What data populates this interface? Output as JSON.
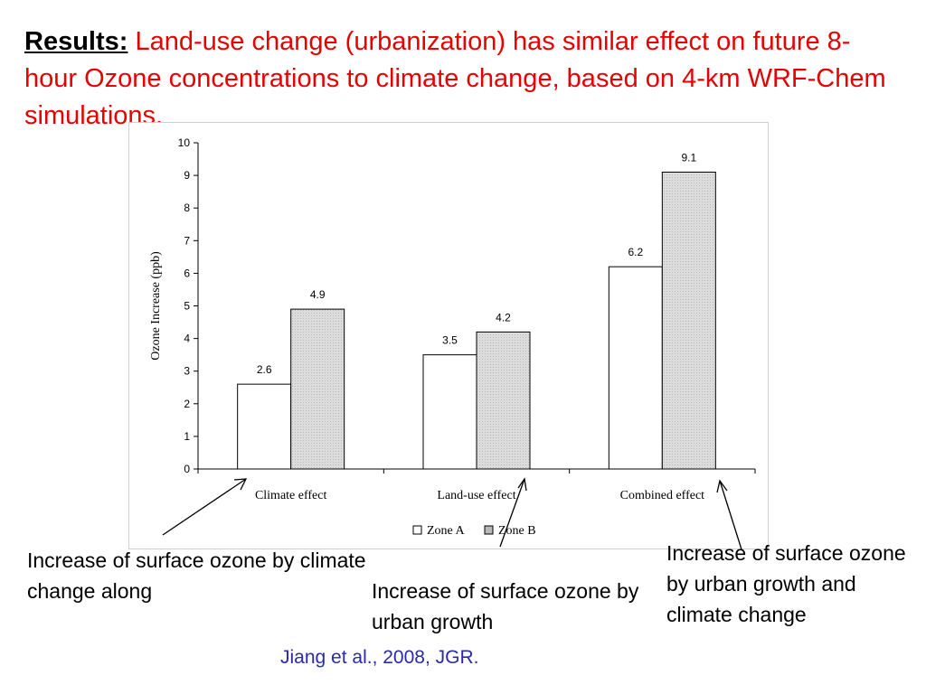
{
  "title": {
    "lead": "Results:",
    "text": "Land-use change (urbanization) has similar effect on future 8-hour Ozone concentrations to climate change, based on 4-km WRF-Chem simulations."
  },
  "chart_data": {
    "type": "bar",
    "categories": [
      "Climate effect",
      "Land-use effect",
      "Combined effect"
    ],
    "series": [
      {
        "name": "Zone A",
        "values": [
          2.6,
          3.5,
          6.2
        ],
        "color": "#ffffff"
      },
      {
        "name": "Zone B",
        "values": [
          4.9,
          4.2,
          9.1
        ],
        "color": "#d9d9d9"
      }
    ],
    "data_labels": [
      [
        "2.6",
        "3.5",
        "6.2"
      ],
      [
        "4.9",
        "4.2",
        "9.1"
      ]
    ],
    "ylabel": "Ozone Increase (ppb)",
    "xlabel": "",
    "ylim": [
      0,
      10
    ],
    "yticks": [
      "0",
      "1",
      "2",
      "3",
      "4",
      "5",
      "6",
      "7",
      "8",
      "9",
      "10"
    ],
    "grid": false,
    "legend_position": "bottom"
  },
  "captions": {
    "left": "Increase of surface ozone by climate change along",
    "middle": "Increase of surface ozone by urban growth",
    "right": "Increase of surface ozone by urban growth and climate change"
  },
  "citation": "Jiang et al., 2008, JGR."
}
